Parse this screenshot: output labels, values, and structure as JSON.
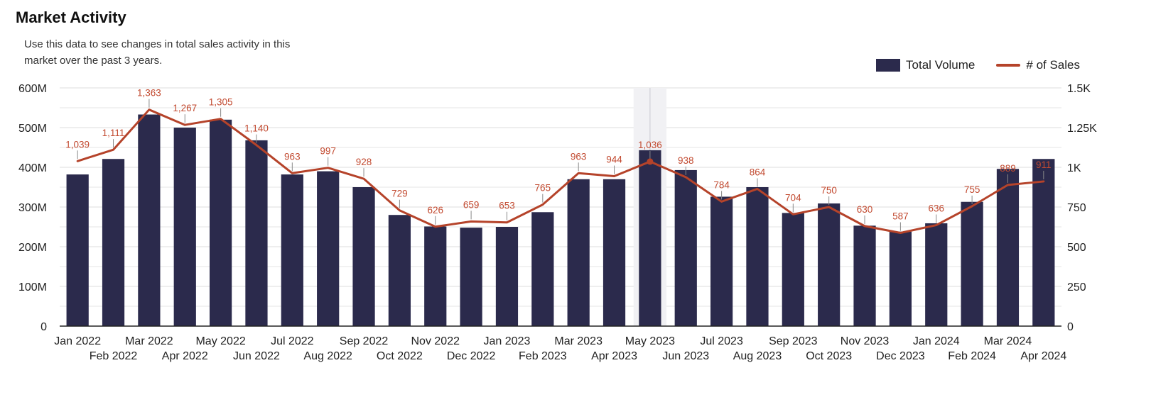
{
  "header": {
    "title": "Market Activity",
    "subtitle": "Use this data to see changes in total sales activity in this market over the past 3 years."
  },
  "legend": {
    "volume_label": "Total Volume",
    "sales_label": "# of Sales"
  },
  "colors": {
    "bar": "#2b2a4c",
    "line": "#b5432a",
    "label": "#c24a30",
    "grid": "#dedede"
  },
  "chart_data": {
    "type": "bar",
    "categories": [
      "Jan 2022",
      "Feb 2022",
      "Mar 2022",
      "Apr 2022",
      "May 2022",
      "Jun 2022",
      "Jul 2022",
      "Aug 2022",
      "Sep 2022",
      "Oct 2022",
      "Nov 2022",
      "Dec 2022",
      "Jan 2023",
      "Feb 2023",
      "Mar 2023",
      "Apr 2023",
      "May 2023",
      "Jun 2023",
      "Jul 2023",
      "Aug 2023",
      "Sep 2023",
      "Oct 2023",
      "Nov 2023",
      "Dec 2023",
      "Jan 2024",
      "Feb 2024",
      "Mar 2024",
      "Apr 2024"
    ],
    "series": [
      {
        "name": "Total Volume",
        "type": "bar",
        "axis": "left",
        "values": [
          382,
          421,
          533,
          500,
          520,
          468,
          382,
          390,
          350,
          280,
          251,
          248,
          250,
          287,
          370,
          370,
          443,
          393,
          326,
          350,
          285,
          309,
          253,
          238,
          259,
          313,
          396,
          421
        ]
      },
      {
        "name": "# of Sales",
        "type": "line",
        "axis": "right",
        "values": [
          1039,
          1111,
          1363,
          1267,
          1305,
          1140,
          963,
          997,
          928,
          729,
          626,
          659,
          653,
          765,
          963,
          944,
          1036,
          938,
          784,
          864,
          704,
          750,
          630,
          587,
          636,
          755,
          889,
          911
        ],
        "labels": [
          "1,039",
          "1,111",
          "1,363",
          "1,267",
          "1,305",
          "1,140",
          "963",
          "997",
          "928",
          "729",
          "626",
          "659",
          "653",
          "765",
          "963",
          "944",
          "1,036",
          "938",
          "784",
          "864",
          "704",
          "750",
          "630",
          "587",
          "636",
          "755",
          "889",
          "911"
        ]
      }
    ],
    "y_left": {
      "lim": [
        0,
        600
      ],
      "ticks": [
        0,
        100,
        200,
        300,
        400,
        500,
        600
      ],
      "tick_labels": [
        "0",
        "100M",
        "200M",
        "300M",
        "400M",
        "500M",
        "600M"
      ]
    },
    "y_right": {
      "lim": [
        0,
        1500
      ],
      "ticks": [
        0,
        250,
        500,
        750,
        1000,
        1250,
        1500
      ],
      "tick_labels": [
        "0",
        "250",
        "500",
        "750",
        "1K",
        "1.25K",
        "1.5K"
      ]
    },
    "highlight_category": "May 2023",
    "grid": true,
    "legend_position": "top-right"
  }
}
